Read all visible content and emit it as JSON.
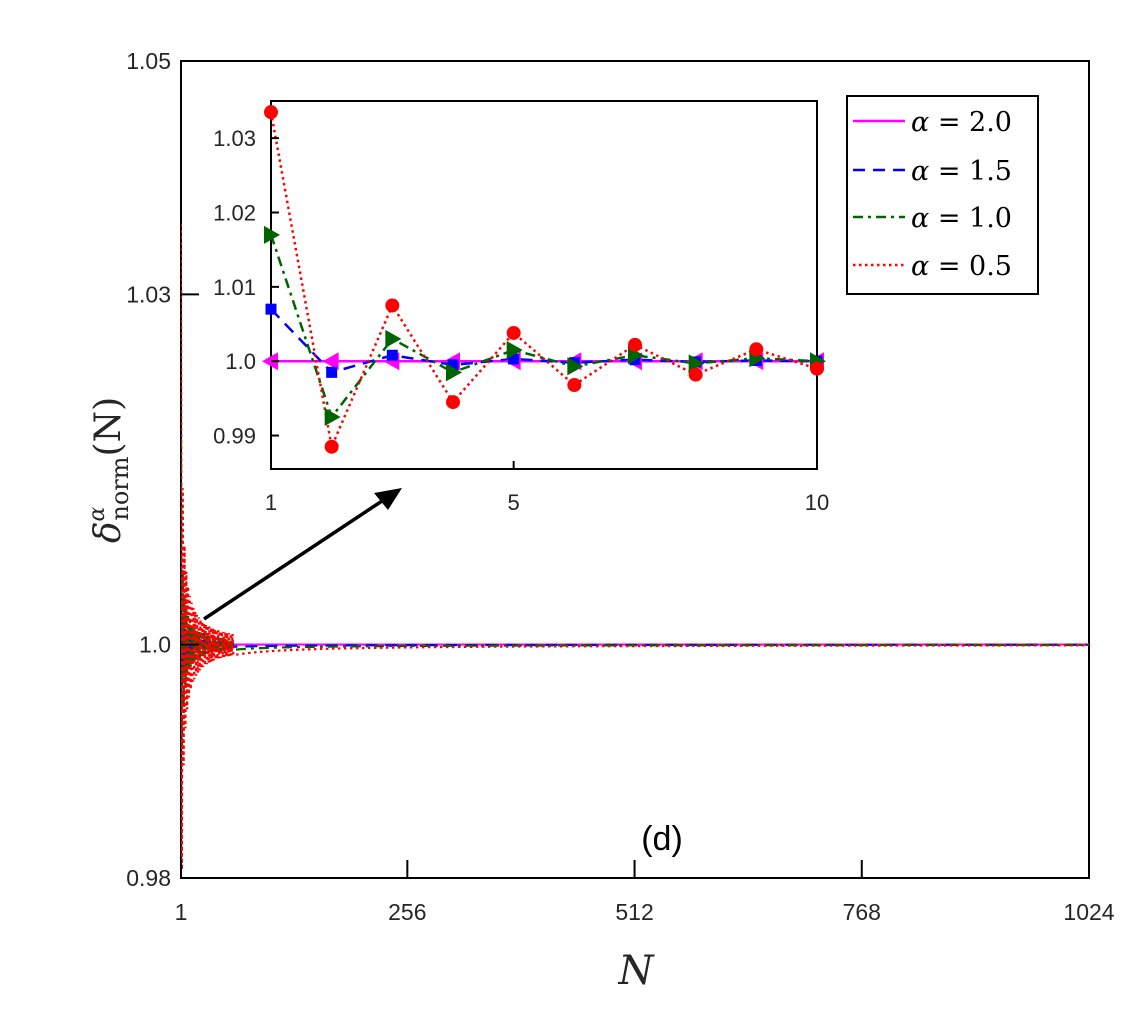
{
  "chart_data": [
    {
      "type": "line",
      "role": "main",
      "panel_label": "(d)",
      "xlabel": "N",
      "ylabel": "δ^α_norm(N)",
      "ylabel_base": "δ",
      "ylabel_sup": "α",
      "ylabel_sub": "norm",
      "ylabel_arg": "(N)",
      "xlim": [
        1,
        1024
      ],
      "ylim": [
        0.98,
        1.05
      ],
      "xticks": [
        1,
        256,
        512,
        768,
        1024
      ],
      "xtick_labels": [
        "1",
        "256",
        "512",
        "768",
        "1024"
      ],
      "yticks": [
        0.98,
        1.0,
        1.03,
        1.05
      ],
      "ytick_labels": [
        "0.98",
        "1.0",
        "1.03",
        "1.05"
      ],
      "series": [
        {
          "name": "α = 2.0",
          "color": "#ff00ff",
          "dash": "solid",
          "asymptote": 1.0
        },
        {
          "name": "α = 1.5",
          "color": "#0000ff",
          "dash": "dashed",
          "asymptote": 1.0
        },
        {
          "name": "α = 1.0",
          "color": "#006400",
          "dash": "dashdot",
          "asymptote": 1.0
        },
        {
          "name": "α = 0.5",
          "color": "#ff0000",
          "dash": "dotted",
          "asymptote": 1.0
        }
      ]
    },
    {
      "type": "line",
      "role": "inset",
      "xlim": [
        1,
        10
      ],
      "ylim": [
        0.9855,
        1.035
      ],
      "xticks": [
        1,
        5,
        10
      ],
      "xtick_labels": [
        "1",
        "5",
        "10"
      ],
      "yticks": [
        0.99,
        1.0,
        1.01,
        1.02,
        1.03
      ],
      "ytick_labels": [
        "0.99",
        "1.0",
        "1.01",
        "1.02",
        "1.03"
      ],
      "x": [
        1,
        2,
        3,
        4,
        5,
        6,
        7,
        8,
        9,
        10
      ],
      "series": [
        {
          "name": "α = 2.0",
          "color": "#ff00ff",
          "marker": "triangle-left",
          "values": [
            1.0,
            1.0,
            1.0,
            1.0,
            1.0,
            1.0,
            1.0,
            1.0,
            1.0,
            1.0
          ]
        },
        {
          "name": "α = 1.5",
          "color": "#0000ff",
          "marker": "square",
          "values": [
            1.007,
            0.9985,
            1.0008,
            0.9995,
            1.0003,
            0.9998,
            1.0002,
            0.9999,
            1.0001,
            1.0
          ]
        },
        {
          "name": "α = 1.0",
          "color": "#006400",
          "marker": "triangle-right",
          "values": [
            1.017,
            0.9925,
            1.003,
            0.9985,
            1.0015,
            0.9993,
            1.0008,
            0.9997,
            1.0004,
            1.0
          ]
        },
        {
          "name": "α = 0.5",
          "color": "#ff0000",
          "marker": "circle",
          "values": [
            1.0335,
            0.9885,
            1.0075,
            0.9945,
            1.0038,
            0.9968,
            1.0022,
            0.9982,
            1.0016,
            0.999
          ]
        }
      ]
    }
  ],
  "legend": [
    "α = 2.0",
    "α = 1.5",
    "α = 1.0",
    "α = 0.5"
  ],
  "legend_parts": [
    {
      "sym": "α",
      "op": " = ",
      "val": "2.0"
    },
    {
      "sym": "α",
      "op": " = ",
      "val": "1.5"
    },
    {
      "sym": "α",
      "op": " = ",
      "val": "1.0"
    },
    {
      "sym": "α",
      "op": " = ",
      "val": "0.5"
    }
  ]
}
